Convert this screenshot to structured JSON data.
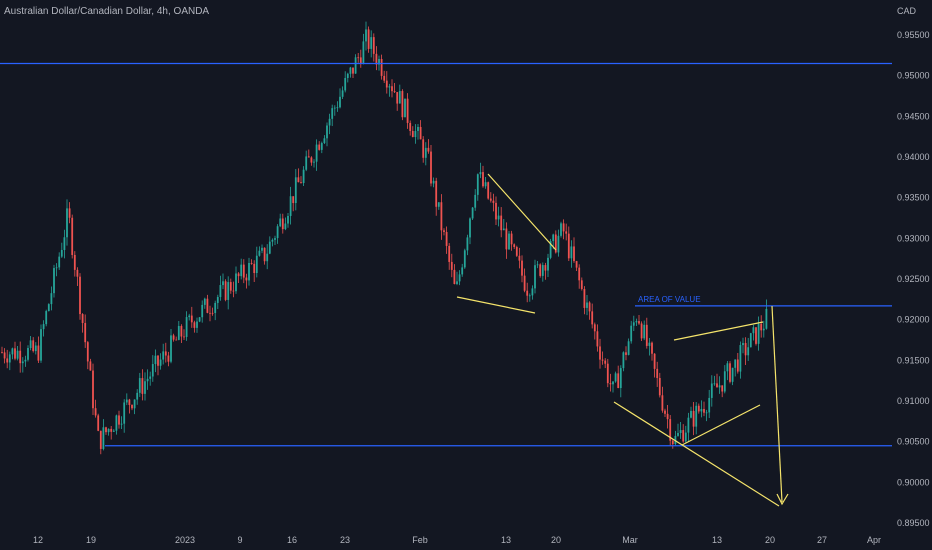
{
  "header": {
    "title": "Australian Dollar/Canadian Dollar, 4h, OANDA",
    "currency": "CAD"
  },
  "colors": {
    "background": "#131722",
    "up": "#26a69a",
    "down": "#ef5350",
    "level_line": "#2962ff",
    "pattern": "#f5e46b",
    "text": "#b2b5be"
  },
  "chart_data": {
    "type": "candlestick",
    "y_axis": {
      "range": [
        0.8945,
        0.958
      ],
      "ticks": [
        "0.95500",
        "0.95000",
        "0.94500",
        "0.94000",
        "0.93500",
        "0.93000",
        "0.92500",
        "0.92000",
        "0.91500",
        "0.91000",
        "0.90500",
        "0.90000",
        "0.89500"
      ]
    },
    "x_axis": {
      "ticks": [
        "12",
        "19",
        "2023",
        "9",
        "16",
        "23",
        "Feb",
        "13",
        "20",
        "Mar",
        "13",
        "20",
        "27",
        "Apr"
      ]
    },
    "grid": false,
    "key_points": [
      {
        "date": "Dec 12",
        "price": 0.916
      },
      {
        "date": "Dec 16",
        "price": 0.933
      },
      {
        "date": "Dec 20",
        "price": 0.905
      },
      {
        "date": "Jan 2",
        "price": 0.92
      },
      {
        "date": "Jan 12",
        "price": 0.928
      },
      {
        "date": "Jan 26",
        "price": 0.9545
      },
      {
        "date": "Jan 30",
        "price": 0.948
      },
      {
        "date": "Feb 2",
        "price": 0.94
      },
      {
        "date": "Feb 6",
        "price": 0.923
      },
      {
        "date": "Feb 9",
        "price": 0.938
      },
      {
        "date": "Feb 16",
        "price": 0.924
      },
      {
        "date": "Feb 21",
        "price": 0.931
      },
      {
        "date": "Feb 28",
        "price": 0.911
      },
      {
        "date": "Mar 2",
        "price": 0.921
      },
      {
        "date": "Mar 7",
        "price": 0.905
      },
      {
        "date": "Mar 15",
        "price": 0.914
      },
      {
        "date": "Mar 20",
        "price": 0.9205
      }
    ],
    "horizontal_levels": [
      0.9515,
      0.9217,
      0.9045
    ],
    "annotations": [
      {
        "text": "AREA OF VALUE",
        "price": 0.9217
      }
    ]
  }
}
